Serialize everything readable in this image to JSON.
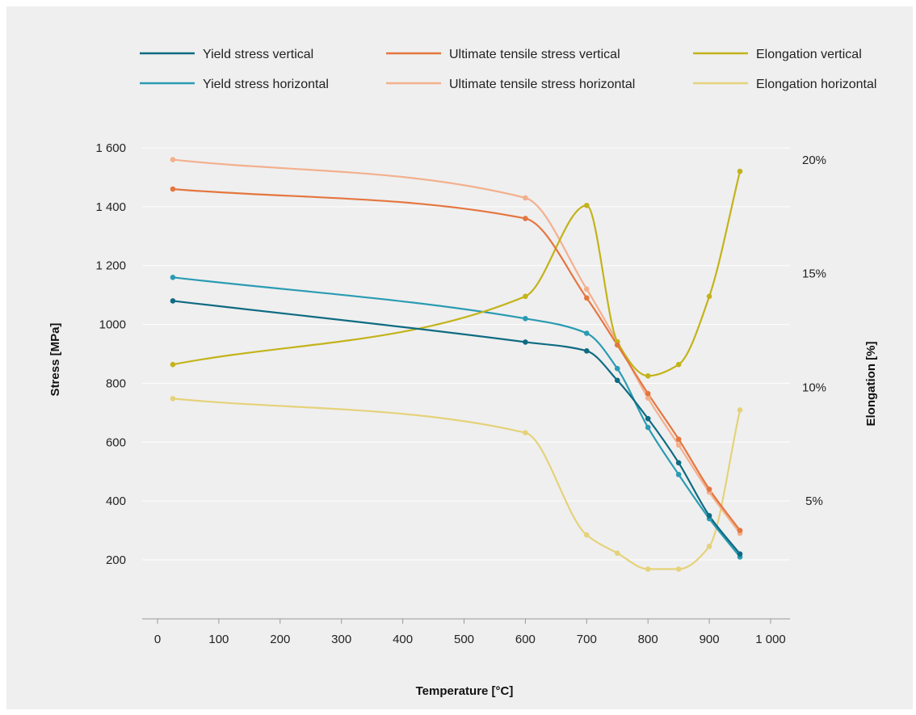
{
  "chart_data": {
    "type": "line",
    "xlabel": "Temperature [°C]",
    "ylabel": "Stress [MPa]",
    "y2label": "Elongation [%]",
    "xlim": [
      -25,
      1035
    ],
    "ylim": [
      0,
      1600
    ],
    "y2lim": [
      0,
      20
    ],
    "x_ticks": [
      0,
      100,
      200,
      300,
      400,
      500,
      600,
      700,
      800,
      900,
      1000
    ],
    "x_tick_labels": [
      "0",
      "100",
      "200",
      "300",
      "400",
      "500",
      "600",
      "700",
      "800",
      "900",
      "1 000"
    ],
    "y_ticks": [
      200,
      400,
      600,
      800,
      1000,
      1200,
      1400,
      1600
    ],
    "y_tick_labels": [
      "200",
      "400",
      "600",
      "800",
      "1000",
      "1 200",
      "1 400",
      "1 600"
    ],
    "y2_ticks": [
      5,
      10,
      15,
      20
    ],
    "y2_tick_labels": [
      "5%",
      "10%",
      "15%",
      "20%"
    ],
    "grid": true,
    "legend_position": "top",
    "series": [
      {
        "name": "Yield stress vertical",
        "axis": "left",
        "color": "#0e6b82",
        "x": [
          25,
          600,
          700,
          750,
          800,
          850,
          900,
          950
        ],
        "values": [
          1080,
          940,
          910,
          810,
          680,
          530,
          350,
          220
        ]
      },
      {
        "name": "Yield stress horizontal",
        "axis": "left",
        "color": "#2a9bb3",
        "x": [
          25,
          600,
          700,
          750,
          800,
          850,
          900,
          950
        ],
        "values": [
          1160,
          1020,
          970,
          850,
          650,
          490,
          340,
          210
        ]
      },
      {
        "name": "Ultimate tensile stress vertical",
        "axis": "left",
        "color": "#e5763f",
        "x": [
          25,
          600,
          700,
          750,
          800,
          850,
          900,
          950
        ],
        "values": [
          1460,
          1360,
          1090,
          930,
          765,
          610,
          440,
          300
        ]
      },
      {
        "name": "Ultimate tensile stress horizontal",
        "axis": "left",
        "color": "#f3b08d",
        "x": [
          25,
          600,
          700,
          750,
          800,
          850,
          900,
          950
        ],
        "values": [
          1560,
          1430,
          1120,
          940,
          750,
          590,
          430,
          290
        ]
      },
      {
        "name": "Elongation vertical",
        "axis": "right",
        "color": "#c3b31a",
        "x": [
          25,
          600,
          700,
          750,
          800,
          850,
          900,
          950
        ],
        "values": [
          11,
          14,
          18,
          12,
          10.5,
          11,
          14,
          19.5
        ]
      },
      {
        "name": "Elongation horizontal",
        "axis": "right",
        "color": "#e5d27a",
        "x": [
          25,
          600,
          700,
          750,
          800,
          850,
          900,
          950
        ],
        "values": [
          9.5,
          8,
          3.5,
          2.7,
          2,
          2,
          3,
          9
        ]
      }
    ]
  }
}
